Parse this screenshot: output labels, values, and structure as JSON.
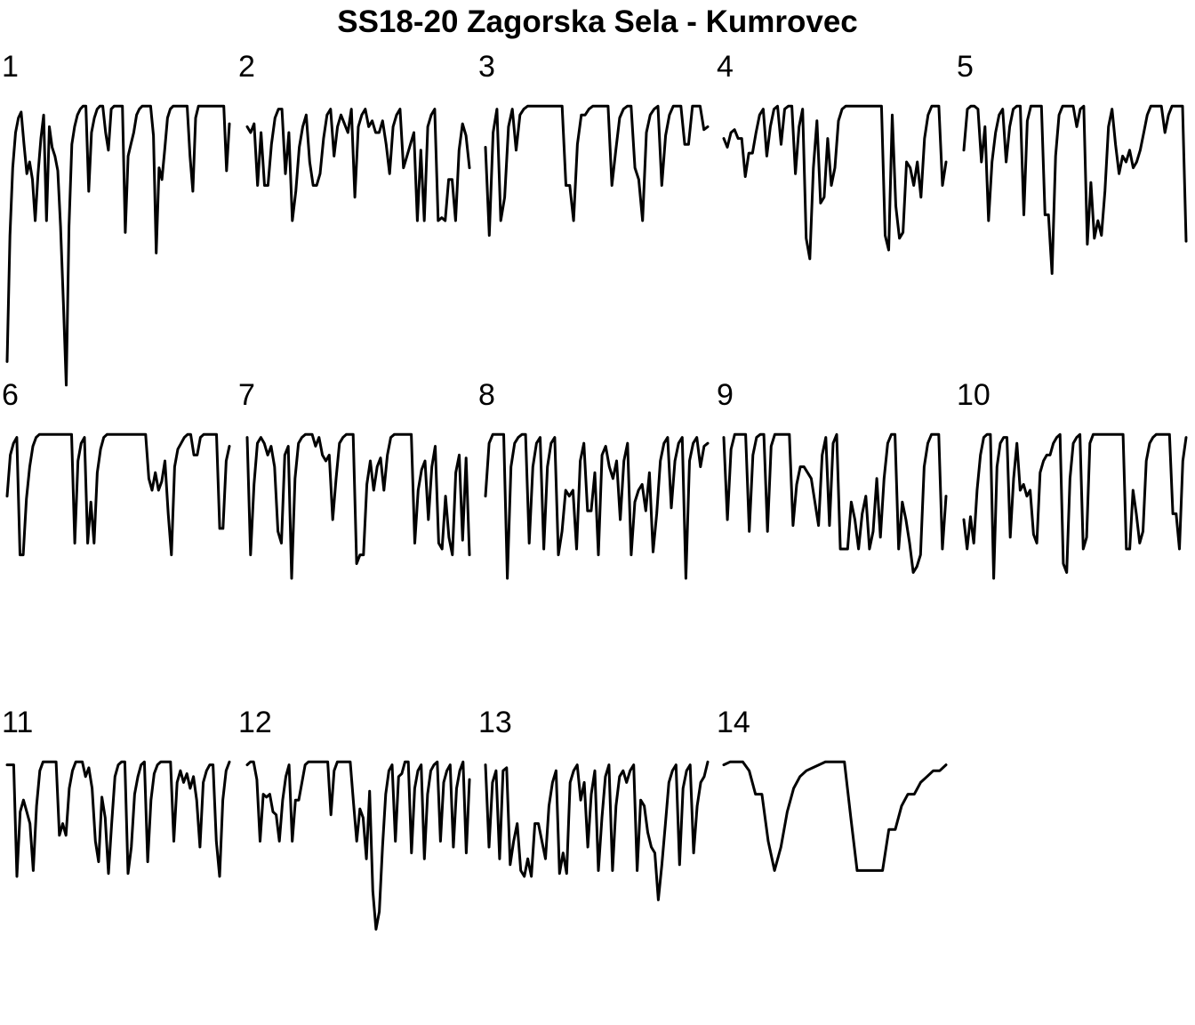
{
  "chart_data": {
    "type": "line",
    "title": "SS18-20 Zagorska Sela - Kumrovec",
    "xlabel": "",
    "ylabel": "",
    "grid": false,
    "legend": "none",
    "line_color": "#000000",
    "panels": [
      {
        "label": "1",
        "values": [
          0.12,
          0.55,
          0.78,
          0.9,
          0.95,
          0.97,
          0.86,
          0.76,
          0.8,
          0.74,
          0.6,
          0.76,
          0.88,
          0.96,
          0.6,
          0.92,
          0.85,
          0.82,
          0.77,
          0.58,
          0.32,
          0.04,
          0.58,
          0.86,
          0.92,
          0.96,
          0.98,
          0.99,
          0.99,
          0.7,
          0.9,
          0.95,
          0.98,
          0.99,
          0.99,
          0.9,
          0.84,
          0.98,
          0.99,
          0.99,
          0.99,
          0.99,
          0.56,
          0.82,
          0.86,
          0.9,
          0.96,
          0.98,
          0.99,
          0.99,
          0.99,
          0.99,
          0.89,
          0.49,
          0.78,
          0.74,
          0.84,
          0.95,
          0.98,
          0.99,
          0.99,
          0.99,
          0.99,
          0.99,
          0.99,
          0.82,
          0.7,
          0.95,
          0.99,
          0.99,
          0.99,
          0.99,
          0.99,
          0.99,
          0.99,
          0.99,
          0.99,
          0.99,
          0.77,
          0.93
        ]
      },
      {
        "label": "2",
        "values": [
          0.92,
          0.9,
          0.93,
          0.72,
          0.9,
          0.72,
          0.72,
          0.86,
          0.95,
          0.98,
          0.98,
          0.76,
          0.9,
          0.6,
          0.7,
          0.85,
          0.92,
          0.96,
          0.8,
          0.72,
          0.72,
          0.76,
          0.88,
          0.96,
          0.98,
          0.82,
          0.92,
          0.96,
          0.93,
          0.9,
          0.98,
          0.68,
          0.92,
          0.96,
          0.98,
          0.92,
          0.94,
          0.9,
          0.9,
          0.94,
          0.86,
          0.76,
          0.92,
          0.96,
          0.98,
          0.78,
          0.82,
          0.86,
          0.9,
          0.6,
          0.84,
          0.6,
          0.92,
          0.96,
          0.98,
          0.6,
          0.61,
          0.6,
          0.74,
          0.74,
          0.6,
          0.84,
          0.93,
          0.89,
          0.78
        ]
      },
      {
        "label": "3",
        "values": [
          0.85,
          0.55,
          0.9,
          0.98,
          0.6,
          0.68,
          0.92,
          0.98,
          0.84,
          0.96,
          0.98,
          0.99,
          0.99,
          0.99,
          0.99,
          0.99,
          0.99,
          0.99,
          0.99,
          0.99,
          0.99,
          0.72,
          0.72,
          0.6,
          0.86,
          0.96,
          0.96,
          0.98,
          0.99,
          0.99,
          0.99,
          0.99,
          0.99,
          0.72,
          0.84,
          0.95,
          0.98,
          0.99,
          0.99,
          0.78,
          0.74,
          0.6,
          0.9,
          0.96,
          0.98,
          0.99,
          0.72,
          0.89,
          0.96,
          0.99,
          0.99,
          0.99,
          0.86,
          0.86,
          0.99,
          0.99,
          0.99,
          0.91,
          0.92
        ]
      },
      {
        "label": "4",
        "values": [
          0.88,
          0.85,
          0.9,
          0.91,
          0.88,
          0.88,
          0.75,
          0.83,
          0.83,
          0.9,
          0.96,
          0.98,
          0.82,
          0.92,
          0.98,
          0.99,
          0.86,
          0.98,
          0.99,
          0.99,
          0.76,
          0.92,
          0.98,
          0.54,
          0.47,
          0.78,
          0.94,
          0.66,
          0.68,
          0.88,
          0.72,
          0.78,
          0.94,
          0.98,
          0.99,
          0.99,
          0.99,
          0.99,
          0.99,
          0.99,
          0.99,
          0.99,
          0.99,
          0.99,
          0.99,
          0.55,
          0.5,
          0.96,
          0.65,
          0.54,
          0.56,
          0.8,
          0.78,
          0.72,
          0.8,
          0.68,
          0.88,
          0.96,
          0.99,
          0.99,
          0.99,
          0.72,
          0.8
        ]
      },
      {
        "label": "5",
        "values": [
          0.84,
          0.98,
          0.99,
          0.99,
          0.98,
          0.8,
          0.92,
          0.6,
          0.8,
          0.9,
          0.96,
          0.98,
          0.8,
          0.92,
          0.98,
          0.99,
          0.99,
          0.62,
          0.94,
          0.99,
          0.99,
          0.99,
          0.99,
          0.62,
          0.62,
          0.42,
          0.82,
          0.96,
          0.99,
          0.99,
          0.99,
          0.99,
          0.92,
          0.98,
          0.99,
          0.52,
          0.73,
          0.54,
          0.6,
          0.55,
          0.7,
          0.92,
          0.98,
          0.86,
          0.76,
          0.82,
          0.8,
          0.84,
          0.78,
          0.8,
          0.84,
          0.9,
          0.96,
          0.99,
          0.99,
          0.99,
          0.99,
          0.9,
          0.96,
          0.99,
          0.99,
          0.99,
          0.99,
          0.53
        ]
      },
      {
        "label": "6",
        "values": [
          0.78,
          0.92,
          0.96,
          0.98,
          0.58,
          0.58,
          0.77,
          0.88,
          0.95,
          0.98,
          0.99,
          0.99,
          0.99,
          0.99,
          0.99,
          0.99,
          0.99,
          0.99,
          0.99,
          0.99,
          0.99,
          0.62,
          0.9,
          0.96,
          0.98,
          0.62,
          0.76,
          0.62,
          0.86,
          0.94,
          0.98,
          0.99,
          0.99,
          0.99,
          0.99,
          0.99,
          0.99,
          0.99,
          0.99,
          0.99,
          0.99,
          0.99,
          0.99,
          0.99,
          0.84,
          0.8,
          0.86,
          0.8,
          0.83,
          0.9,
          0.72,
          0.58,
          0.88,
          0.94,
          0.96,
          0.98,
          0.99,
          0.99,
          0.92,
          0.92,
          0.98,
          0.99,
          0.99,
          0.99,
          0.99,
          0.99,
          0.67,
          0.67,
          0.9,
          0.95
        ]
      },
      {
        "label": "7",
        "values": [
          0.98,
          0.58,
          0.82,
          0.96,
          0.98,
          0.96,
          0.92,
          0.95,
          0.88,
          0.66,
          0.62,
          0.92,
          0.95,
          0.5,
          0.84,
          0.96,
          0.98,
          0.99,
          0.99,
          0.99,
          0.95,
          0.98,
          0.92,
          0.9,
          0.92,
          0.7,
          0.84,
          0.96,
          0.98,
          0.99,
          0.99,
          0.99,
          0.55,
          0.58,
          0.58,
          0.82,
          0.9,
          0.8,
          0.88,
          0.91,
          0.8,
          0.92,
          0.98,
          0.99,
          0.99,
          0.99,
          0.99,
          0.99,
          0.99,
          0.62,
          0.8,
          0.87,
          0.9,
          0.7,
          0.88,
          0.95,
          0.62,
          0.6,
          0.78,
          0.64,
          0.58,
          0.86,
          0.92,
          0.63,
          0.91,
          0.58
        ]
      },
      {
        "label": "8",
        "values": [
          0.78,
          0.96,
          0.99,
          0.99,
          0.99,
          0.99,
          0.5,
          0.88,
          0.96,
          0.98,
          0.99,
          0.99,
          0.62,
          0.88,
          0.96,
          0.98,
          0.6,
          0.88,
          0.96,
          0.98,
          0.58,
          0.66,
          0.8,
          0.78,
          0.8,
          0.6,
          0.9,
          0.96,
          0.73,
          0.73,
          0.86,
          0.58,
          0.92,
          0.95,
          0.88,
          0.84,
          0.9,
          0.7,
          0.9,
          0.96,
          0.58,
          0.76,
          0.8,
          0.82,
          0.73,
          0.86,
          0.59,
          0.72,
          0.9,
          0.96,
          0.98,
          0.74,
          0.9,
          0.96,
          0.98,
          0.5,
          0.9,
          0.96,
          0.98,
          0.88,
          0.95,
          0.96
        ]
      },
      {
        "label": "9",
        "values": [
          0.98,
          0.7,
          0.94,
          0.99,
          0.99,
          0.99,
          0.99,
          0.66,
          0.92,
          0.98,
          0.99,
          0.99,
          0.66,
          0.95,
          0.99,
          0.99,
          0.99,
          0.99,
          0.99,
          0.68,
          0.82,
          0.88,
          0.88,
          0.86,
          0.84,
          0.76,
          0.68,
          0.92,
          0.98,
          0.68,
          0.96,
          0.99,
          0.6,
          0.6,
          0.6,
          0.76,
          0.7,
          0.6,
          0.72,
          0.78,
          0.6,
          0.66,
          0.84,
          0.64,
          0.84,
          0.96,
          0.99,
          0.99,
          0.6,
          0.76,
          0.7,
          0.62,
          0.52,
          0.54,
          0.58,
          0.88,
          0.96,
          0.99,
          0.99,
          0.99,
          0.6,
          0.78
        ]
      },
      {
        "label": "10",
        "values": [
          0.7,
          0.6,
          0.71,
          0.62,
          0.8,
          0.92,
          0.98,
          0.99,
          0.99,
          0.5,
          0.88,
          0.96,
          0.98,
          0.98,
          0.64,
          0.84,
          0.96,
          0.8,
          0.82,
          0.78,
          0.8,
          0.65,
          0.62,
          0.86,
          0.9,
          0.92,
          0.92,
          0.96,
          0.98,
          0.99,
          0.55,
          0.52,
          0.84,
          0.96,
          0.98,
          0.99,
          0.6,
          0.64,
          0.96,
          0.99,
          0.99,
          0.99,
          0.99,
          0.99,
          0.99,
          0.99,
          0.99,
          0.99,
          0.99,
          0.6,
          0.6,
          0.8,
          0.72,
          0.62,
          0.66,
          0.9,
          0.96,
          0.98,
          0.99,
          0.99,
          0.99,
          0.99,
          0.99,
          0.72,
          0.72,
          0.6,
          0.9,
          0.98
        ]
      },
      {
        "label": "11",
        "values": [
          0.98,
          0.98,
          0.98,
          0.6,
          0.82,
          0.86,
          0.82,
          0.78,
          0.62,
          0.84,
          0.96,
          0.99,
          0.99,
          0.99,
          0.99,
          0.99,
          0.74,
          0.78,
          0.74,
          0.9,
          0.96,
          0.99,
          0.99,
          0.99,
          0.94,
          0.97,
          0.9,
          0.72,
          0.65,
          0.87,
          0.8,
          0.61,
          0.78,
          0.94,
          0.98,
          0.99,
          0.99,
          0.61,
          0.7,
          0.88,
          0.94,
          0.98,
          0.99,
          0.65,
          0.86,
          0.95,
          0.98,
          0.99,
          0.99,
          0.99,
          0.99,
          0.72,
          0.92,
          0.96,
          0.92,
          0.95,
          0.9,
          0.94,
          0.86,
          0.7,
          0.92,
          0.96,
          0.98,
          0.98,
          0.72,
          0.6,
          0.86,
          0.96,
          0.99
        ]
      },
      {
        "label": "12",
        "values": [
          0.98,
          0.99,
          0.99,
          0.93,
          0.72,
          0.88,
          0.87,
          0.88,
          0.82,
          0.81,
          0.72,
          0.86,
          0.94,
          0.98,
          0.72,
          0.86,
          0.86,
          0.92,
          0.98,
          0.99,
          0.99,
          0.99,
          0.99,
          0.99,
          0.99,
          0.99,
          0.81,
          0.96,
          0.99,
          0.99,
          0.99,
          0.99,
          0.99,
          0.85,
          0.72,
          0.83,
          0.8,
          0.66,
          0.89,
          0.55,
          0.42,
          0.48,
          0.7,
          0.88,
          0.96,
          0.98,
          0.72,
          0.94,
          0.95,
          0.99,
          0.99,
          0.68,
          0.9,
          0.96,
          0.98,
          0.66,
          0.88,
          0.96,
          0.98,
          0.99,
          0.72,
          0.92,
          0.96,
          0.98,
          0.7,
          0.9,
          0.96,
          0.99,
          0.68,
          0.93
        ]
      },
      {
        "label": "13",
        "values": [
          0.98,
          0.7,
          0.92,
          0.96,
          0.66,
          0.96,
          0.97,
          0.64,
          0.72,
          0.78,
          0.62,
          0.6,
          0.66,
          0.6,
          0.78,
          0.78,
          0.72,
          0.66,
          0.84,
          0.92,
          0.96,
          0.61,
          0.68,
          0.61,
          0.92,
          0.96,
          0.98,
          0.86,
          0.92,
          0.7,
          0.88,
          0.96,
          0.62,
          0.8,
          0.94,
          0.98,
          0.62,
          0.84,
          0.94,
          0.96,
          0.92,
          0.96,
          0.98,
          0.62,
          0.86,
          0.84,
          0.75,
          0.7,
          0.68,
          0.52,
          0.64,
          0.78,
          0.92,
          0.96,
          0.98,
          0.64,
          0.9,
          0.96,
          0.98,
          0.68,
          0.84,
          0.92,
          0.94,
          0.99
        ]
      },
      {
        "label": "14",
        "values": [
          0.98,
          0.99,
          0.99,
          0.99,
          0.96,
          0.88,
          0.88,
          0.72,
          0.62,
          0.7,
          0.82,
          0.9,
          0.94,
          0.96,
          0.97,
          0.98,
          0.99,
          0.99,
          0.99,
          0.99,
          0.8,
          0.62,
          0.62,
          0.62,
          0.62,
          0.62,
          0.76,
          0.76,
          0.84,
          0.88,
          0.88,
          0.92,
          0.94,
          0.96,
          0.96,
          0.98
        ]
      }
    ]
  }
}
